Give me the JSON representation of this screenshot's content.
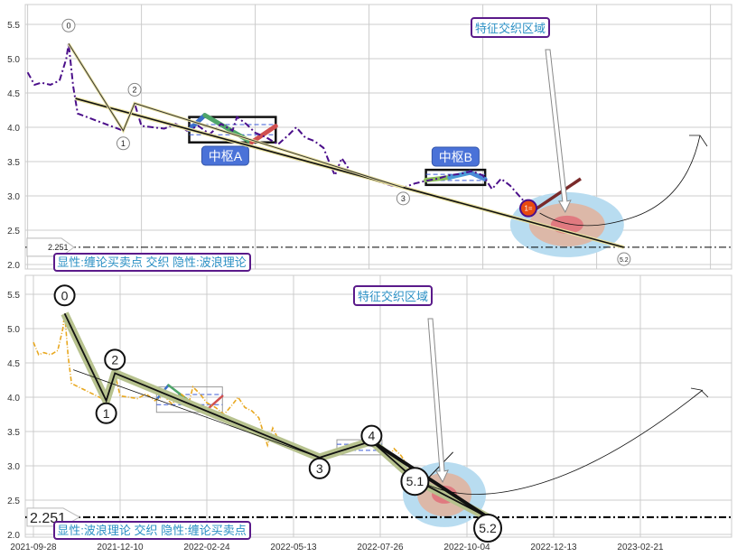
{
  "chart_data": [
    {
      "type": "line",
      "panel": "top",
      "ylim": [
        2.0,
        5.75
      ],
      "yticks": [
        "2.0",
        "2.5",
        "3.0",
        "3.5",
        "4.0",
        "4.5",
        "5.0",
        "5.5"
      ],
      "grid": true,
      "series_color": "#4b0f8a",
      "waves": [
        {
          "label": "0",
          "idx": 18,
          "value": 5.22
        },
        {
          "label": "1",
          "idx": 42,
          "value": 3.95
        },
        {
          "label": "2",
          "idx": 47,
          "value": 4.35
        },
        {
          "label": "3",
          "idx": 165,
          "value": 3.12
        },
        {
          "label": "5.2",
          "idx": 262,
          "value": 2.25
        }
      ],
      "zhongshu": [
        {
          "label": "中枢A",
          "idx_start": 71,
          "idx_end": 109,
          "low": 3.78,
          "high": 4.15
        },
        {
          "label": "中枢B",
          "idx_start": 175,
          "idx_end": 201,
          "low": 3.16,
          "high": 3.38
        }
      ],
      "signal_marker": "1=",
      "hline": {
        "value": 2.251,
        "label": "2.251"
      },
      "focus_label": "特征交织区域",
      "legend": "显性:缠论买卖点 交织 隐性:波浪理论"
    },
    {
      "type": "line",
      "panel": "bottom",
      "ylim": [
        2.0,
        5.75
      ],
      "yticks": [
        "2.0",
        "2.5",
        "3.0",
        "3.5",
        "4.0",
        "4.5",
        "5.0",
        "5.5"
      ],
      "xticks": [
        "2021-09-28",
        "2021-12-10",
        "2022-02-24",
        "2022-05-13",
        "2022-07-26",
        "2022-10-04",
        "2022-12-13",
        "2023-02-21"
      ],
      "grid": true,
      "series_color": "#e8a820",
      "waves": [
        {
          "label": "0",
          "idx": 18,
          "value": 5.22
        },
        {
          "label": "1",
          "idx": 42,
          "value": 3.95
        },
        {
          "label": "2",
          "idx": 47,
          "value": 4.35
        },
        {
          "label": "3",
          "idx": 165,
          "value": 3.12
        },
        {
          "label": "4",
          "idx": 195,
          "value": 3.36
        },
        {
          "label": "5.1",
          "idx": 220,
          "value": 2.8
        },
        {
          "label": "5.2",
          "idx": 262,
          "value": 2.25
        }
      ],
      "zhongshu": [
        {
          "label": "",
          "idx_start": 71,
          "idx_end": 109,
          "low": 3.78,
          "high": 4.15
        },
        {
          "label": "",
          "idx_start": 175,
          "idx_end": 201,
          "low": 3.16,
          "high": 3.38
        }
      ],
      "hline": {
        "value": 2.251,
        "label": "2.251"
      },
      "focus_label": "特征交织区域",
      "legend": "显性:波浪理论 交织 隐性:缠论买卖点"
    }
  ],
  "price_series": {
    "idx": [
      0,
      3,
      6,
      10,
      14,
      17,
      18,
      20,
      22,
      26,
      30,
      34,
      38,
      42,
      45,
      47,
      50,
      55,
      60,
      65,
      70,
      75,
      80,
      85,
      90,
      92,
      96,
      100,
      105,
      110,
      115,
      118,
      122,
      126,
      130,
      133,
      135,
      138,
      142,
      146,
      150,
      155,
      160,
      165,
      170,
      175,
      180,
      185,
      190,
      195,
      200,
      204,
      208,
      212,
      216,
      220,
      222
    ],
    "value": [
      4.8,
      4.62,
      4.65,
      4.62,
      4.68,
      5.0,
      5.22,
      4.6,
      4.2,
      4.15,
      4.1,
      4.05,
      4.0,
      3.95,
      4.2,
      4.35,
      4.02,
      4.0,
      3.98,
      4.05,
      3.95,
      4.02,
      3.9,
      4.05,
      3.95,
      4.15,
      4.05,
      3.92,
      3.85,
      3.75,
      3.9,
      4.0,
      3.85,
      3.8,
      3.7,
      3.45,
      3.3,
      3.55,
      3.35,
      3.3,
      3.25,
      3.2,
      3.15,
      3.12,
      3.18,
      3.22,
      3.25,
      3.3,
      3.32,
      3.36,
      3.3,
      3.1,
      3.25,
      3.15,
      3.0,
      2.85,
      2.8
    ]
  }
}
